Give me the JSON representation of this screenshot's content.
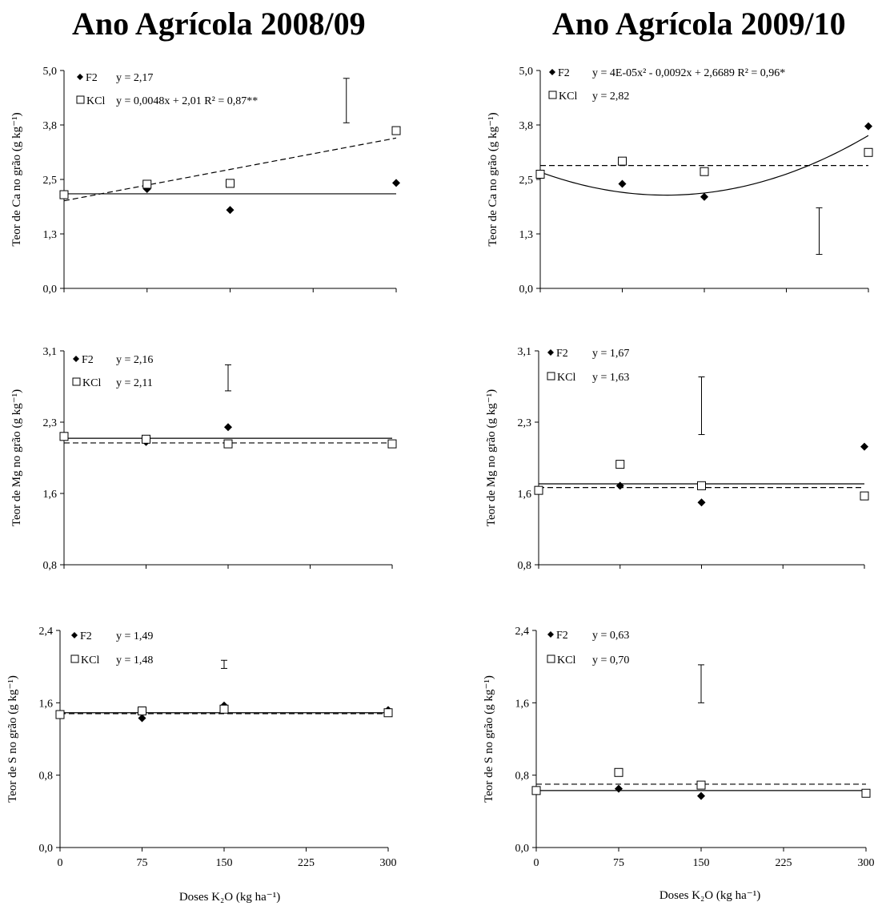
{
  "titles": [
    "Ano Agrícola 2008/09",
    "Ano Agrícola 2009/10"
  ],
  "xlabel": "Doses K₂O (kg ha⁻¹)",
  "chart_data": [
    {
      "type": "scatter",
      "ylabel": "Teor de Ca no grão (g kg⁻¹)",
      "xticks": [
        "0",
        "75",
        "150",
        "225",
        "300"
      ],
      "yticks": [
        "0,0",
        "1,3",
        "2,5",
        "3,8",
        "5,0"
      ],
      "xlim": [
        0,
        300
      ],
      "ylim": [
        0,
        5
      ],
      "series": [
        {
          "name": "F2",
          "marker": "diamond",
          "equation": "y = 2,17",
          "x": [
            0,
            75,
            150,
            300
          ],
          "y": [
            2.15,
            2.28,
            1.8,
            2.42
          ],
          "fit": {
            "kind": "const",
            "c": 2.17,
            "dash": false
          }
        },
        {
          "name": "KCl",
          "marker": "square",
          "equation": "y = 0,0048x + 2,01 R² = 0,87**",
          "x": [
            0,
            75,
            150,
            300
          ],
          "y": [
            2.15,
            2.39,
            2.41,
            3.62
          ],
          "fit": {
            "kind": "linear",
            "a": 0.0048,
            "b": 2.01,
            "dash": true
          }
        }
      ],
      "error_bar": {
        "x": 255,
        "y_low": 3.8,
        "y_high": 4.82
      }
    },
    {
      "type": "scatter",
      "ylabel": "Teor de Ca no grão (g kg⁻¹)",
      "xticks": [
        "0",
        "75",
        "150",
        "225",
        "300"
      ],
      "yticks": [
        "0,0",
        "1,3",
        "2,5",
        "3,8",
        "5,0"
      ],
      "xlim": [
        0,
        300
      ],
      "ylim": [
        0,
        5
      ],
      "series": [
        {
          "name": "F2",
          "marker": "diamond",
          "equation": "y = 4E-05x² - 0,0092x + 2,6689 R² = 0,96*",
          "x": [
            0,
            75,
            150,
            300
          ],
          "y": [
            2.62,
            2.4,
            2.1,
            3.72
          ],
          "fit": {
            "kind": "quad",
            "a": 4e-05,
            "b": -0.0092,
            "c": 2.6689,
            "dash": false
          }
        },
        {
          "name": "KCl",
          "marker": "square",
          "equation": "y = 2,82",
          "x": [
            0,
            75,
            150,
            300
          ],
          "y": [
            2.62,
            2.92,
            2.68,
            3.12
          ],
          "fit": {
            "kind": "const",
            "c": 2.82,
            "dash": true
          }
        }
      ],
      "error_bar": {
        "x": 255,
        "y_low": 0.78,
        "y_high": 1.85
      }
    },
    {
      "type": "scatter",
      "ylabel": "Teor de Mg no grão (g kg⁻¹)",
      "xticks": [
        "0",
        "75",
        "150",
        "225",
        "300"
      ],
      "yticks": [
        "0,8",
        "1,6",
        "2,3",
        "3,1"
      ],
      "xlim": [
        0,
        300
      ],
      "ylim": [
        0.8,
        3.1
      ],
      "series": [
        {
          "name": "F2",
          "marker": "diamond",
          "equation": "y = 2,16",
          "x": [
            0,
            75,
            150,
            300
          ],
          "y": [
            2.18,
            2.12,
            2.28,
            2.1
          ],
          "fit": {
            "kind": "const",
            "c": 2.16,
            "dash": false
          }
        },
        {
          "name": "KCl",
          "marker": "square",
          "equation": "y = 2,11",
          "x": [
            0,
            75,
            150,
            300
          ],
          "y": [
            2.18,
            2.15,
            2.1,
            2.1
          ],
          "fit": {
            "kind": "const",
            "c": 2.11,
            "dash": true
          }
        }
      ],
      "error_bar": {
        "x": 150,
        "y_low": 2.67,
        "y_high": 2.95
      }
    },
    {
      "type": "scatter",
      "ylabel": "Teor de Mg no grão (g kg⁻¹)",
      "xticks": [
        "0",
        "75",
        "150",
        "225",
        "300"
      ],
      "yticks": [
        "0,8",
        "1,6",
        "2,3",
        "3,1"
      ],
      "xlim": [
        0,
        300
      ],
      "ylim": [
        0.8,
        3.1
      ],
      "series": [
        {
          "name": "F2",
          "marker": "diamond",
          "equation": "y = 1,67",
          "x": [
            0,
            75,
            150,
            300
          ],
          "y": [
            1.6,
            1.65,
            1.47,
            2.07
          ],
          "fit": {
            "kind": "const",
            "c": 1.67,
            "dash": false
          }
        },
        {
          "name": "KCl",
          "marker": "square",
          "equation": "y = 1,63",
          "x": [
            0,
            75,
            150,
            300
          ],
          "y": [
            1.6,
            1.88,
            1.65,
            1.54
          ],
          "fit": {
            "kind": "const",
            "c": 1.63,
            "dash": true
          }
        }
      ],
      "error_bar": {
        "x": 150,
        "y_low": 2.2,
        "y_high": 2.82
      }
    },
    {
      "type": "scatter",
      "ylabel": "Teor de S no grão (g kg⁻¹)",
      "xticks": [
        "0",
        "75",
        "150",
        "225",
        "300"
      ],
      "yticks": [
        "0,0",
        "0,8",
        "1,6",
        "2,4"
      ],
      "xlim": [
        0,
        300
      ],
      "ylim": [
        0,
        2.4
      ],
      "series": [
        {
          "name": "F2",
          "marker": "diamond",
          "equation": "y = 1,49",
          "x": [
            0,
            75,
            150,
            300
          ],
          "y": [
            1.47,
            1.43,
            1.57,
            1.52
          ],
          "fit": {
            "kind": "const",
            "c": 1.49,
            "dash": false
          }
        },
        {
          "name": "KCl",
          "marker": "square",
          "equation": "y = 1,48",
          "x": [
            0,
            75,
            150,
            300
          ],
          "y": [
            1.47,
            1.51,
            1.53,
            1.49
          ],
          "fit": {
            "kind": "const",
            "c": 1.48,
            "dash": true
          }
        }
      ],
      "error_bar": {
        "x": 150,
        "y_low": 1.98,
        "y_high": 2.07
      }
    },
    {
      "type": "scatter",
      "ylabel": "Teor de S no grão (g kg⁻¹)",
      "xticks": [
        "0",
        "75",
        "150",
        "225",
        "300"
      ],
      "yticks": [
        "0,0",
        "0,8",
        "1,6",
        "2,4"
      ],
      "xlim": [
        0,
        300
      ],
      "ylim": [
        0,
        2.4
      ],
      "series": [
        {
          "name": "F2",
          "marker": "diamond",
          "equation": "y = 0,63",
          "x": [
            0,
            75,
            150,
            300
          ],
          "y": [
            0.63,
            0.65,
            0.57,
            0.6
          ],
          "fit": {
            "kind": "const",
            "c": 0.63,
            "dash": false
          }
        },
        {
          "name": "KCl",
          "marker": "square",
          "equation": "y = 0,70",
          "x": [
            0,
            75,
            150,
            300
          ],
          "y": [
            0.63,
            0.83,
            0.69,
            0.6
          ],
          "fit": {
            "kind": "const",
            "c": 0.7,
            "dash": true
          }
        }
      ],
      "error_bar": {
        "x": 150,
        "y_low": 1.6,
        "y_high": 2.02
      }
    }
  ]
}
